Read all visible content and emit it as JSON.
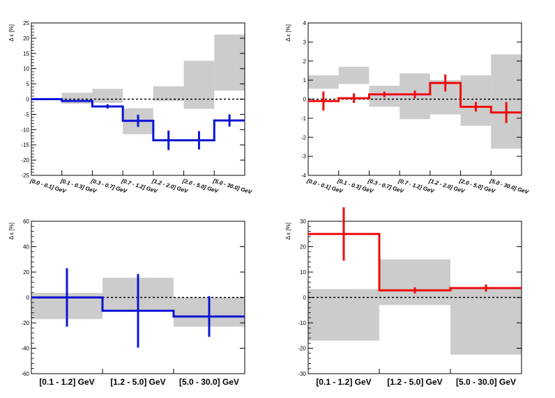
{
  "colors": {
    "blue": "#0a14d4",
    "red": "#ee0a0a",
    "band": "#cccccc"
  },
  "chart_data": [
    {
      "type": "step",
      "ylabel": "Δ ε [%]",
      "color": "blue",
      "ylim": [
        -25,
        25
      ],
      "yticks": [
        -25,
        -20,
        -15,
        -10,
        -5,
        0,
        5,
        10,
        15,
        20,
        25
      ],
      "categories": [
        "[0.0 - 0.1] GeV",
        "[0.1 - 0.3] GeV",
        "[0.3 - 0.7] GeV",
        "[0.7 - 1.2] GeV",
        "[1.2 - 2.0] GeV",
        "[2.0 - 5.0] GeV",
        "[5.0 - 30.0] GeV"
      ],
      "values": [
        0,
        -0.6,
        -2.4,
        -7.1,
        -13.5,
        -13.5,
        -7.0
      ],
      "errors": [
        0,
        0.3,
        0.7,
        2.0,
        3.2,
        3.0,
        2.0
      ],
      "band_low": [
        0,
        -1.5,
        -1.2,
        -11.5,
        -0.6,
        -3.2,
        2.8
      ],
      "band_high": [
        0,
        2.1,
        3.4,
        -3.0,
        4.2,
        12.6,
        21.2
      ]
    },
    {
      "type": "step",
      "ylabel": "Δ ε [%]",
      "color": "red",
      "ylim": [
        -4,
        4
      ],
      "yticks": [
        -4,
        -3,
        -2,
        -1,
        0,
        1,
        2,
        3,
        4
      ],
      "categories": [
        "[0.0 - 0.1] GeV",
        "[0.1 - 0.3] GeV",
        "[0.3 - 0.7] GeV",
        "[0.7 - 1.2] GeV",
        "[1.2 - 2.0] GeV",
        "[2.0 - 5.0] GeV",
        "[5.0 - 30.0] GeV"
      ],
      "values": [
        -0.1,
        0.05,
        0.25,
        0.25,
        0.85,
        -0.4,
        -0.7
      ],
      "errors": [
        0.5,
        0.25,
        0.15,
        0.2,
        0.45,
        0.25,
        0.55
      ],
      "band_low": [
        0.55,
        0.8,
        -0.4,
        -1.05,
        -0.8,
        -1.4,
        -2.6
      ],
      "band_high": [
        1.25,
        1.7,
        0.7,
        1.35,
        1.0,
        1.25,
        2.35
      ]
    },
    {
      "type": "step",
      "ylabel": "Δ ε [%]",
      "color": "blue",
      "ylim": [
        -60,
        60
      ],
      "yticks": [
        -60,
        -40,
        -20,
        0,
        20,
        40,
        60
      ],
      "categories": [
        "[0.1 - 1.2] GeV",
        "[1.2 - 5.0] GeV",
        "[5.0 - 30.0] GeV"
      ],
      "values": [
        0,
        -10.5,
        -15
      ],
      "errors": [
        23,
        29,
        16
      ],
      "band_low": [
        -17,
        -10,
        -23
      ],
      "band_high": [
        3.5,
        15.5,
        0
      ]
    },
    {
      "type": "step",
      "ylabel": "Δ ε [%]",
      "color": "red",
      "ylim": [
        -30,
        30
      ],
      "yticks": [
        -30,
        -20,
        -10,
        0,
        10,
        20,
        30
      ],
      "categories": [
        "[0.1 - 1.2] GeV",
        "[1.2 - 5.0] GeV",
        "[5.0 - 30.0] GeV"
      ],
      "values": [
        25,
        2.8,
        3.7
      ],
      "errors": [
        10.5,
        1.2,
        1.4
      ],
      "band_low": [
        -17,
        -3,
        -22.5
      ],
      "band_high": [
        3.3,
        15,
        3.5
      ]
    }
  ]
}
